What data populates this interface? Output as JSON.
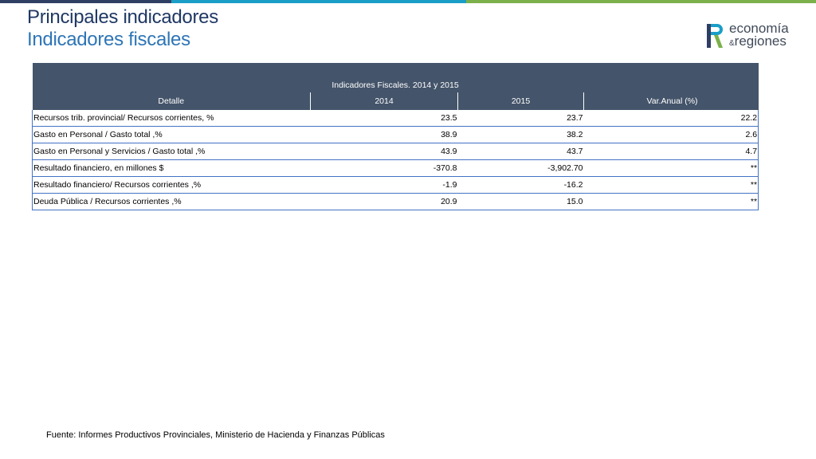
{
  "slide": {
    "title": "Principales indicadores",
    "subtitle": "Indicadores fiscales",
    "source": "Fuente: Informes Productivos Provinciales, Ministerio de Hacienda y Finanzas Públicas"
  },
  "logo": {
    "line1": "economía",
    "amp": "&",
    "line2": "regiones"
  },
  "colors": {
    "title": "#1f3864",
    "subtitle": "#2e75b6",
    "header_bg": "#44546a",
    "row_border": "#4472c4"
  },
  "table": {
    "caption": "Indicadores Fiscales. 2014 y 2015",
    "headers": [
      "Detalle",
      "2014",
      "2015",
      "Var.Anual (%)"
    ],
    "rows": [
      [
        "Recursos trib. provincial/ Recursos corrientes, %",
        "23.5",
        "23.7",
        "22.2"
      ],
      [
        "Gasto en Personal / Gasto total ,%",
        "38.9",
        "38.2",
        "2.6"
      ],
      [
        "Gasto en Personal y Servicios / Gasto total ,%",
        "43.9",
        "43.7",
        "4.7"
      ],
      [
        "Resultado financiero, en millones $",
        "-370.8",
        "-3,902.70",
        "**"
      ],
      [
        "Resultado financiero/ Recursos corrientes ,%",
        "-1.9",
        "-16.2",
        "**"
      ],
      [
        "Deuda Pública / Recursos corrientes ,%",
        "20.9",
        "15.0",
        "**"
      ]
    ]
  }
}
